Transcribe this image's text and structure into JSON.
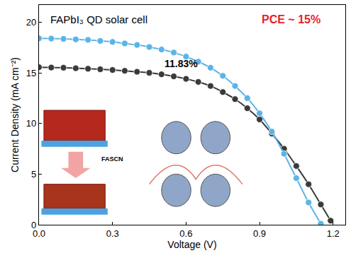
{
  "chart_data": {
    "type": "line",
    "xlabel": "Voltage (V)",
    "ylabel": "Current Density (mA cm⁻²)",
    "x": [
      0,
      0.05,
      0.1,
      0.15,
      0.2,
      0.25,
      0.3,
      0.35,
      0.4,
      0.45,
      0.5,
      0.55,
      0.6,
      0.65,
      0.7,
      0.75,
      0.8,
      0.85,
      0.9,
      0.95,
      1.0,
      1.05,
      1.1,
      1.15,
      1.19
    ],
    "series": [
      {
        "color": "#3a3a3a",
        "marker": "circle",
        "line_style": "solid",
        "values": [
          15.55,
          15.52,
          15.5,
          15.45,
          15.4,
          15.35,
          15.28,
          15.2,
          15.1,
          15.0,
          14.85,
          14.65,
          14.4,
          14.1,
          13.7,
          13.1,
          12.4,
          11.5,
          10.4,
          9.0,
          7.5,
          5.8,
          4.0,
          2.0,
          0.4
        ]
      },
      {
        "color": "#5bb4e8",
        "marker": "circle",
        "line_style": "solid",
        "values": [
          18.4,
          18.38,
          18.35,
          18.3,
          18.25,
          18.15,
          18.05,
          17.9,
          17.75,
          17.55,
          17.3,
          17.0,
          16.6,
          16.1,
          15.5,
          14.7,
          13.7,
          12.5,
          11.0,
          9.2,
          7.0,
          4.6,
          2.2,
          0.1,
          null
        ]
      }
    ],
    "xlim": [
      0,
      1.25
    ],
    "xticks": [
      {
        "value": 0,
        "label": "0.0"
      },
      0.3,
      0.6,
      0.9,
      1.2
    ],
    "ylim": [
      0,
      21.7
    ],
    "yticks": [
      0,
      5,
      10,
      15,
      20
    ],
    "grid": false,
    "annotations": [
      {
        "text": "FAPbI₃ QD solar cell",
        "color": "#000000"
      },
      {
        "text": "PCE ~ 15%",
        "color": "#e8202a"
      },
      {
        "text": "11.83%",
        "color": "#000000"
      },
      {
        "text": "FASCN",
        "color": "#000000"
      }
    ]
  }
}
